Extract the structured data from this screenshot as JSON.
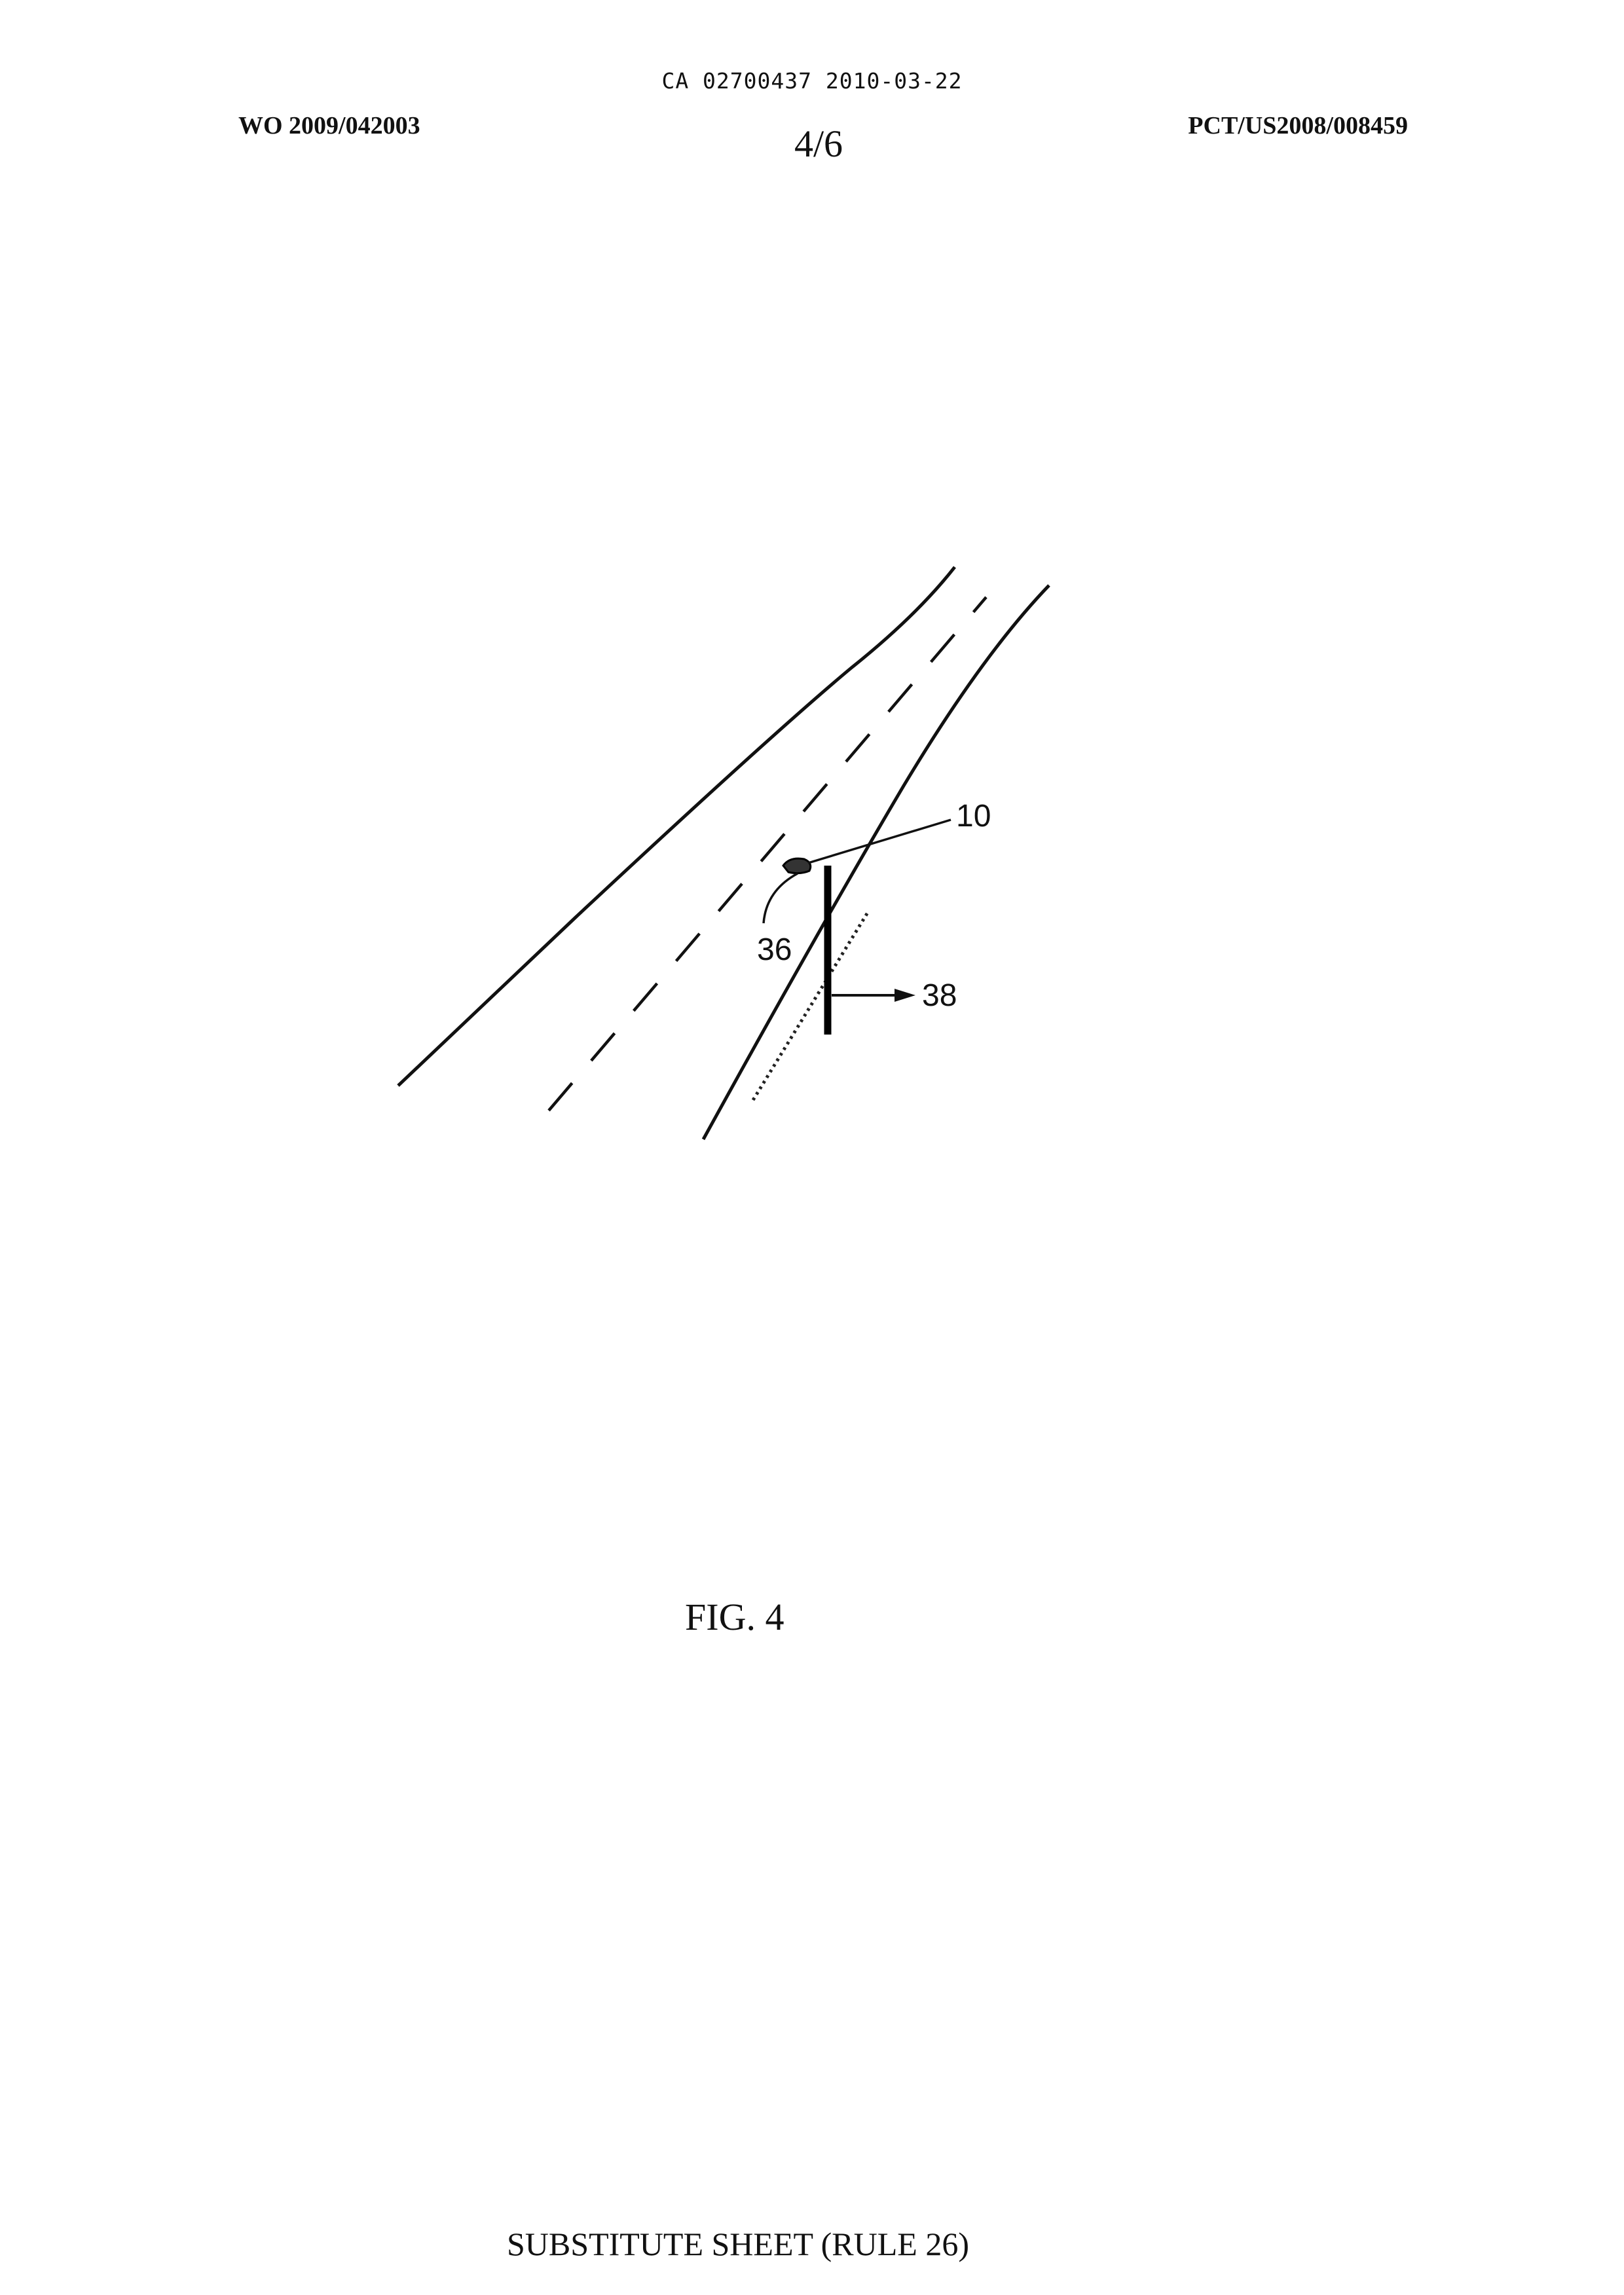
{
  "header": {
    "ca_line": "CA 02700437 2010-03-22",
    "wo_number": "WO 2009/042003",
    "sheet_number": "4/6",
    "pct_number": "PCT/US2008/008459"
  },
  "figure": {
    "reference_numerals": {
      "ref_10": "10",
      "ref_36": "36",
      "ref_38": "38"
    },
    "caption": "FIG. 4"
  },
  "footer": {
    "text": "SUBSTITUTE SHEET (RULE 26)"
  }
}
